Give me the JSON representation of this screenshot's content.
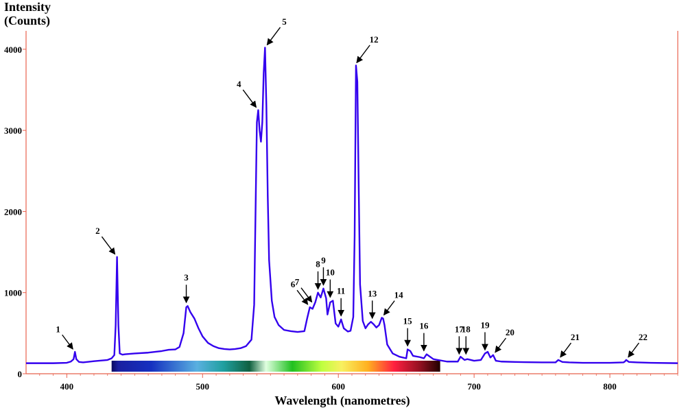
{
  "chart_data": {
    "type": "line",
    "ylabel_line1": "Intensity",
    "ylabel_line2": "(Counts)",
    "xlabel": "Wavelength (nanometres)",
    "xlim": [
      370,
      850
    ],
    "ylim": [
      0,
      4200
    ],
    "x_ticks": [
      400,
      500,
      600,
      700,
      800
    ],
    "y_ticks": [
      0,
      1000,
      2000,
      3000,
      4000
    ],
    "colors": {
      "line": "#3300ee",
      "axis": "#e8604c",
      "arrow": "#000000"
    },
    "spectrum_bar": {
      "from_nm": 433,
      "to_nm": 675
    },
    "series": [
      {
        "x": [
          370,
          390,
          400,
          403,
          405,
          406,
          407,
          409,
          412,
          420,
          430,
          433,
          435,
          436,
          437,
          438,
          439,
          441,
          443,
          450,
          460,
          470,
          475,
          480,
          483,
          486,
          488,
          489,
          491,
          494,
          497,
          500,
          504,
          508,
          512,
          516,
          520,
          524,
          528,
          532,
          536,
          538,
          540,
          541,
          542,
          543,
          544,
          545,
          546,
          547,
          548,
          549,
          551,
          553,
          556,
          560,
          565,
          570,
          575,
          577,
          579,
          581,
          583,
          585,
          587,
          589,
          591,
          592,
          594,
          596,
          598,
          600,
          602,
          604,
          607,
          609,
          611,
          612,
          613,
          614,
          615,
          616,
          618,
          620,
          622,
          624,
          626,
          628,
          630,
          632,
          633,
          634,
          636,
          640,
          645,
          650,
          651,
          653,
          655,
          660,
          663,
          665,
          670,
          680,
          688,
          690,
          693,
          695,
          700,
          705,
          708,
          710,
          712,
          714,
          716,
          720,
          730,
          750,
          760,
          762,
          765,
          770,
          780,
          790,
          800,
          810,
          811,
          812,
          814,
          820,
          830,
          850
        ],
        "y": [
          130,
          130,
          135,
          150,
          180,
          270,
          180,
          145,
          140,
          155,
          170,
          190,
          230,
          600,
          1440,
          600,
          250,
          235,
          240,
          250,
          260,
          280,
          295,
          300,
          330,
          500,
          820,
          835,
          760,
          680,
          560,
          460,
          380,
          340,
          315,
          305,
          300,
          305,
          315,
          340,
          420,
          850,
          3100,
          3250,
          3000,
          2860,
          3100,
          3700,
          4020,
          3300,
          2200,
          1400,
          900,
          700,
          600,
          540,
          525,
          515,
          525,
          680,
          820,
          800,
          880,
          1000,
          940,
          1050,
          930,
          730,
          880,
          900,
          620,
          580,
          670,
          560,
          520,
          530,
          700,
          1700,
          3800,
          3600,
          2300,
          1100,
          650,
          560,
          610,
          640,
          610,
          570,
          600,
          690,
          680,
          600,
          360,
          250,
          210,
          190,
          300,
          280,
          220,
          205,
          190,
          240,
          180,
          150,
          150,
          210,
          170,
          180,
          160,
          170,
          250,
          270,
          200,
          230,
          160,
          150,
          145,
          140,
          140,
          170,
          145,
          140,
          135,
          135,
          135,
          140,
          150,
          170,
          145,
          140,
          135,
          130
        ]
      }
    ],
    "annotations": [
      {
        "label": "1",
        "x": 406,
        "y": 270
      },
      {
        "label": "2",
        "x": 437,
        "y": 1440
      },
      {
        "label": "3",
        "x": 488,
        "y": 835
      },
      {
        "label": "4",
        "x": 541,
        "y": 3250
      },
      {
        "label": "5",
        "x": 546,
        "y": 4020
      },
      {
        "label": "6",
        "x": 579,
        "y": 820
      },
      {
        "label": "7",
        "x": 582,
        "y": 850
      },
      {
        "label": "8",
        "x": 585,
        "y": 1000
      },
      {
        "label": "9",
        "x": 589,
        "y": 1050
      },
      {
        "label": "10",
        "x": 594,
        "y": 900
      },
      {
        "label": "11",
        "x": 602,
        "y": 670
      },
      {
        "label": "12",
        "x": 612,
        "y": 3800
      },
      {
        "label": "13",
        "x": 625,
        "y": 640
      },
      {
        "label": "14",
        "x": 632,
        "y": 690
      },
      {
        "label": "15",
        "x": 651,
        "y": 300
      },
      {
        "label": "16",
        "x": 663,
        "y": 240
      },
      {
        "label": "17",
        "x": 689,
        "y": 200
      },
      {
        "label": "18",
        "x": 694,
        "y": 200
      },
      {
        "label": "19",
        "x": 708,
        "y": 250
      },
      {
        "label": "20",
        "x": 714,
        "y": 230
      },
      {
        "label": "21",
        "x": 762,
        "y": 170
      },
      {
        "label": "22",
        "x": 812,
        "y": 170
      }
    ]
  }
}
